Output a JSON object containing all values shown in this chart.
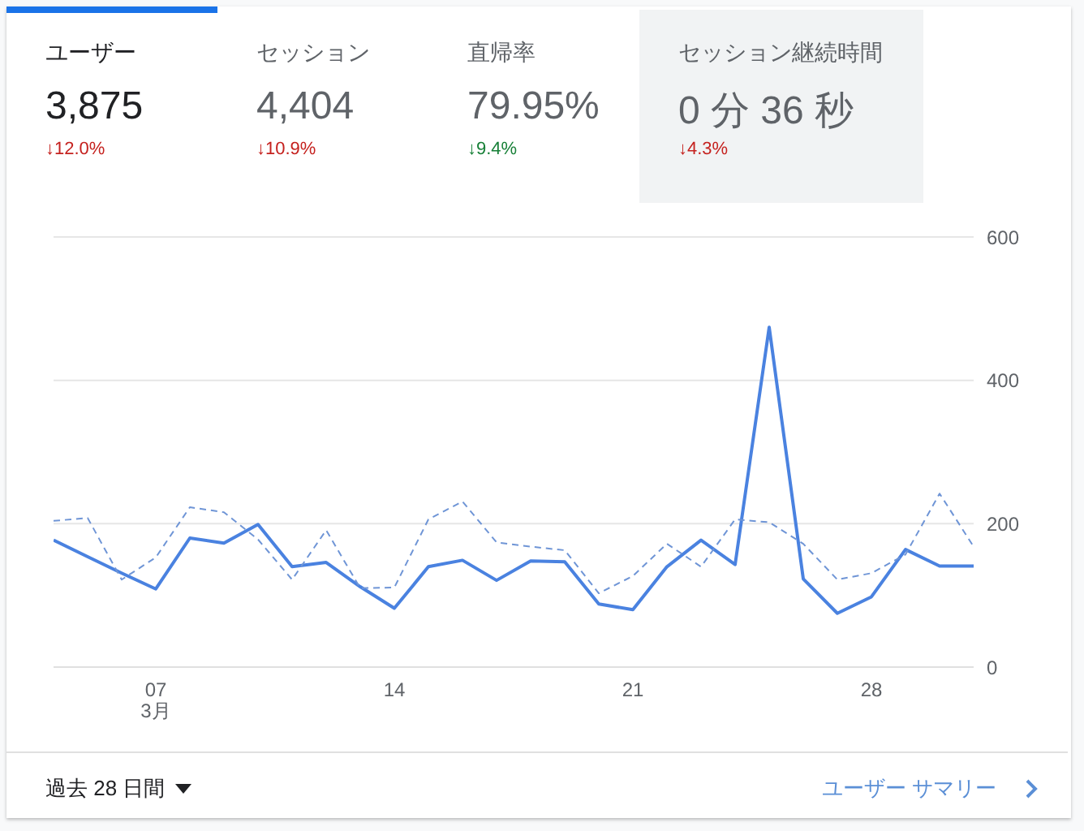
{
  "chart_data": [
    {
      "type": "other",
      "annotations": [
        "ユーザー",
        "3,875",
        "↓12.0%",
        "セッション",
        "4,404",
        "↓10.9%",
        "直帰率",
        "79.95%",
        "↓9.4%",
        "セッション継続時間",
        "0 分 36 秒",
        "↓4.3%"
      ]
    },
    {
      "type": "line",
      "categories": [
        null,
        null,
        null,
        "07\n3月",
        null,
        null,
        null,
        null,
        null,
        null,
        "14",
        null,
        null,
        null,
        null,
        null,
        null,
        "21",
        null,
        null,
        null,
        null,
        null,
        null,
        "28",
        null,
        null,
        null
      ],
      "series": [
        {
          "color": "#4a82e0",
          "line_style": "solid",
          "values": [
            177,
            154,
            131,
            109,
            180,
            173,
            199,
            140,
            146,
            112,
            82,
            140,
            149,
            121,
            148,
            147,
            88,
            80,
            140,
            177,
            143,
            474,
            123,
            75,
            98,
            164,
            141,
            141
          ]
        },
        {
          "color": "#6f95d6",
          "line_style": "dashed",
          "values": [
            204,
            208,
            122,
            153,
            223,
            216,
            178,
            122,
            191,
            110,
            111,
            206,
            231,
            174,
            168,
            163,
            103,
            127,
            172,
            140,
            206,
            202,
            172,
            122,
            131,
            157,
            242,
            168
          ]
        }
      ],
      "ylim": [
        0,
        600
      ],
      "yticks": [
        0,
        200,
        400,
        600
      ],
      "grid": "y",
      "marker": "none",
      "annotations": [
        "過去 28 日間",
        "ユーザー サマリー"
      ]
    }
  ]
}
